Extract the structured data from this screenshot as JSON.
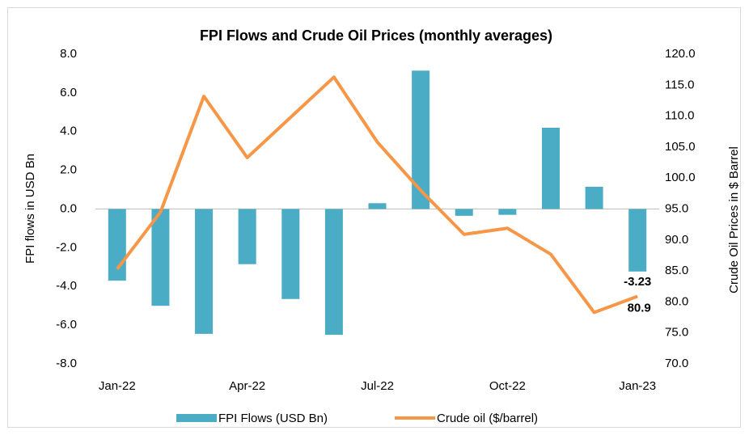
{
  "chart_data": {
    "type": "bar",
    "title": "FPI Flows and Crude Oil Prices (monthly averages)",
    "y_label": "FPI flows in USD Bn",
    "y2_label": "Crude Oil Prices in $ Barrel",
    "categories": [
      "Jan-22",
      null,
      null,
      "Apr-22",
      null,
      null,
      "Jul-22",
      null,
      null,
      "Oct-22",
      null,
      null,
      "Jan-23"
    ],
    "series": [
      {
        "name": "FPI Flows (USD Bn)",
        "type": "bar",
        "color": "#4bacc6",
        "values": [
          -3.7,
          -5.0,
          -6.45,
          -2.85,
          -4.65,
          -6.5,
          0.3,
          7.15,
          -0.35,
          -0.3,
          4.2,
          1.15,
          -3.23
        ],
        "value_labels": [
          null,
          null,
          null,
          null,
          null,
          null,
          null,
          null,
          null,
          null,
          null,
          null,
          "-3.23"
        ]
      },
      {
        "name": "Crude oil ($/barrel)",
        "type": "line",
        "axis": "y2",
        "color": "#f79646",
        "values": [
          85.3,
          94.5,
          113.2,
          103.3,
          109.8,
          116.3,
          105.8,
          98.0,
          90.9,
          91.9,
          87.7,
          78.3,
          80.9
        ],
        "value_labels": [
          null,
          null,
          null,
          null,
          null,
          null,
          null,
          null,
          null,
          null,
          null,
          null,
          "80.9"
        ]
      }
    ],
    "ylim": [
      -8,
      8
    ],
    "yticks": [
      {
        "value": 8,
        "label": "8.0"
      },
      {
        "value": 6,
        "label": "6.0"
      },
      {
        "value": 4,
        "label": "4.0"
      },
      {
        "value": 2,
        "label": "2.0"
      },
      {
        "value": 0,
        "label": "0.0"
      },
      {
        "value": -2,
        "label": "-2.0"
      },
      {
        "value": -4,
        "label": "-4.0"
      },
      {
        "value": -6,
        "label": "-6.0"
      },
      {
        "value": -8,
        "label": "-8.0"
      }
    ],
    "y2lim": [
      70,
      120
    ],
    "y2ticks": [
      {
        "value": 120,
        "label": "120.0"
      },
      {
        "value": 115,
        "label": "115.0"
      },
      {
        "value": 110,
        "label": "110.0"
      },
      {
        "value": 105,
        "label": "105.0"
      },
      {
        "value": 100,
        "label": "100.0"
      },
      {
        "value": 95,
        "label": "95.0"
      },
      {
        "value": 90,
        "label": "90.0"
      },
      {
        "value": 85,
        "label": "85.0"
      },
      {
        "value": 80,
        "label": "80.0"
      },
      {
        "value": 75,
        "label": "75.0"
      },
      {
        "value": 70,
        "label": "70.0"
      }
    ],
    "grid": false
  }
}
